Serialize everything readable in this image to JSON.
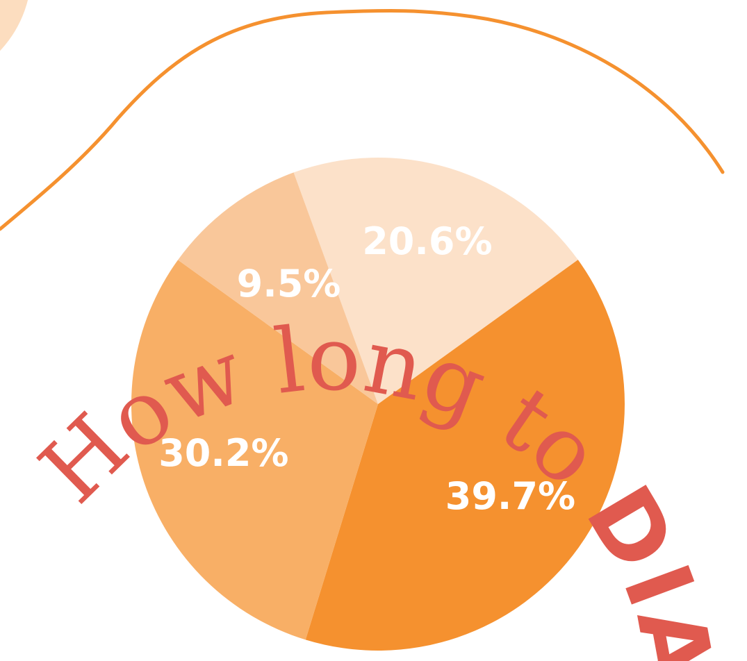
{
  "colors": {
    "accent_orange": "#F5912F",
    "title_red": "#E05A4F",
    "slice_dark": "#F5912F",
    "slice_mid": "#F8AF66",
    "slice_light": "#F9C79A",
    "slice_pale": "#FCE1C9",
    "label_white": "#FFFFFF"
  },
  "title": {
    "part_light": "How long to ",
    "part_bold": "DIAGNOSE?"
  },
  "chart_data": {
    "type": "pie",
    "title": "How long to DIAGNOSE?",
    "slices": [
      {
        "label": "20.6%",
        "value": 20.6,
        "color": "#FCE1C9"
      },
      {
        "label": "39.7%",
        "value": 39.7,
        "color": "#F5912F"
      },
      {
        "label": "30.2%",
        "value": 30.2,
        "color": "#F8AF66"
      },
      {
        "label": "9.5%",
        "value": 9.5,
        "color": "#F9C79A"
      }
    ],
    "legend": "none"
  }
}
